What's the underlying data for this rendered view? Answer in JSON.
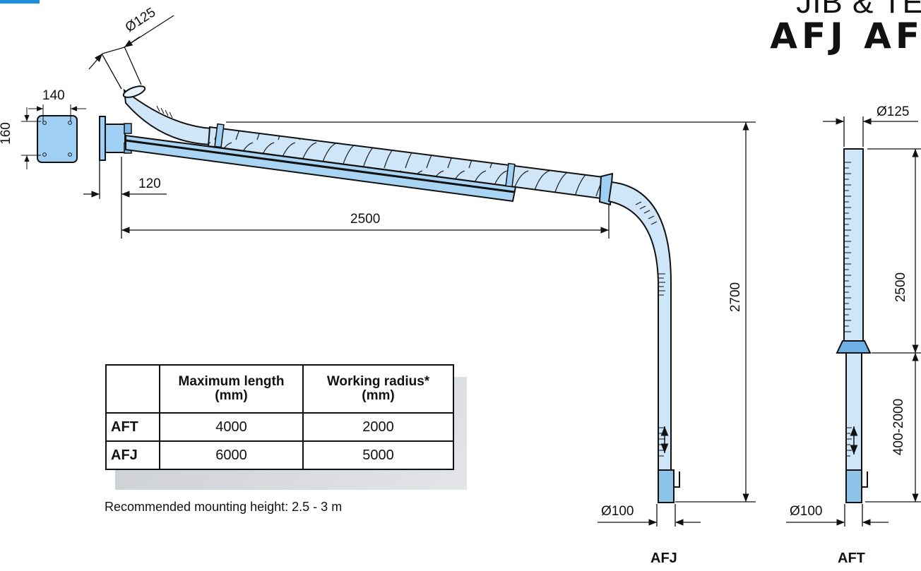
{
  "heading": {
    "line1": "JIB & TE",
    "line2": "AFJ AF"
  },
  "dimensions": {
    "top_diameter": "Ø125",
    "plate_width": "140",
    "plate_height": "160",
    "bracket_depth": "120",
    "arm_length": "2500",
    "height_afj": "2700",
    "afj_bottom_diameter": "Ø100",
    "aft_top_diameter": "Ø125",
    "aft_upper_length": "2500",
    "aft_lower_length": "400-2000",
    "aft_bottom_diameter": "Ø100"
  },
  "table": {
    "headers": [
      "",
      "Maximum length\n(mm)",
      "Working radius*\n(mm)"
    ],
    "rows": [
      {
        "model": "AFT",
        "max_length": "4000",
        "working_radius": "2000"
      },
      {
        "model": "AFJ",
        "max_length": "6000",
        "working_radius": "5000"
      }
    ]
  },
  "note": "Recommended mounting height: 2.5 - 3 m",
  "captions": {
    "afj": "AFJ",
    "aft": "AFT"
  },
  "colors": {
    "tube_fill": "#cfe6f8",
    "tube_dark": "#8ec3ea",
    "accent": "#1e8fdc",
    "line": "#111111"
  }
}
